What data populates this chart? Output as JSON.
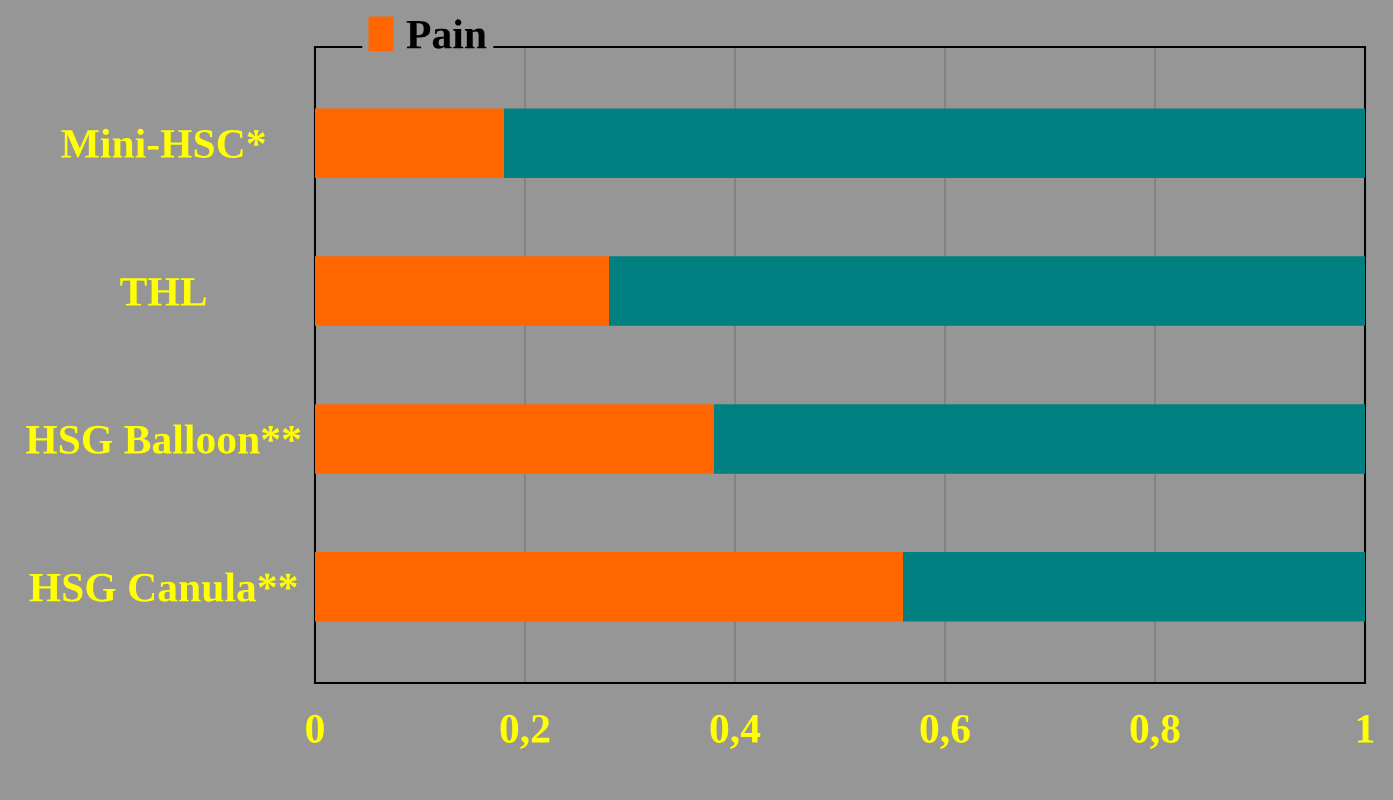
{
  "chart_data": {
    "type": "bar",
    "orientation": "horizontal",
    "stacked": true,
    "categories": [
      "Mini-HSC*",
      "THL",
      "HSG Balloon**",
      "HSG Canula**"
    ],
    "series": [
      {
        "name": "Pain",
        "color": "#ff6600",
        "values": [
          0.18,
          0.28,
          0.38,
          0.56
        ]
      },
      {
        "color": "#008080",
        "values": [
          0.82,
          0.72,
          0.62,
          0.44
        ]
      }
    ],
    "xlim": [
      0,
      1
    ],
    "xticks": [
      0,
      {
        "value": 0.2,
        "label": "0,2"
      },
      {
        "value": 0.4,
        "label": "0,4"
      },
      {
        "value": 0.6,
        "label": "0,6"
      },
      {
        "value": 0.8,
        "label": "0,8"
      },
      1
    ],
    "grid": "x",
    "legend": "top left"
  }
}
